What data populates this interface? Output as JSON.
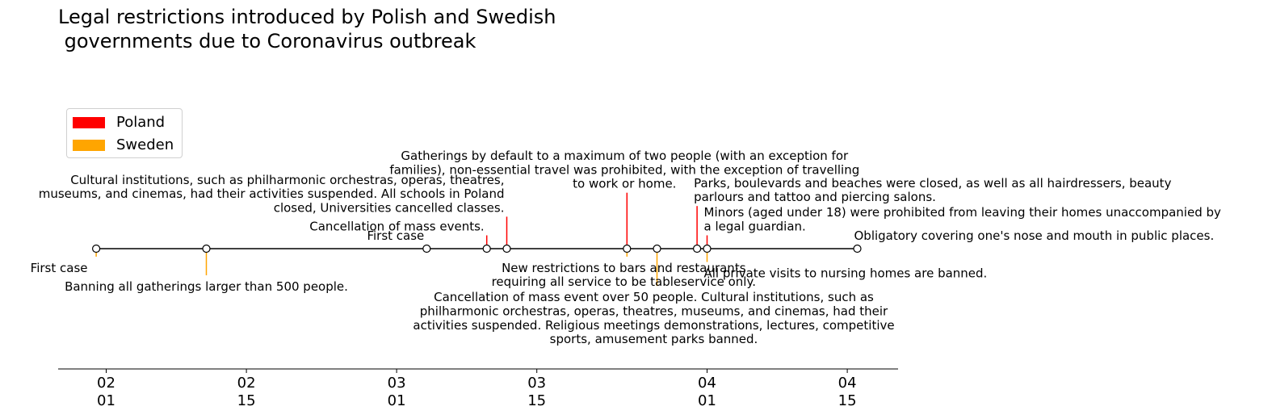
{
  "chart_data": {
    "type": "timeline",
    "title": "Legal restrictions introduced by Polish and Swedish\n governments due to Coronavirus outbreak",
    "legend": [
      {
        "name": "Poland",
        "color": "#ff0000"
      },
      {
        "name": "Sweden",
        "color": "#ffa500"
      }
    ],
    "legend_position": "upper-left",
    "x_ticks": [
      {
        "date": "2020-02-01",
        "label_line1": "02",
        "label_line2": "01"
      },
      {
        "date": "2020-02-15",
        "label_line1": "02",
        "label_line2": "15"
      },
      {
        "date": "2020-03-01",
        "label_line1": "03",
        "label_line2": "01"
      },
      {
        "date": "2020-03-15",
        "label_line1": "03",
        "label_line2": "15"
      },
      {
        "date": "2020-04-01",
        "label_line1": "04",
        "label_line2": "01"
      },
      {
        "date": "2020-04-15",
        "label_line1": "04",
        "label_line2": "15"
      }
    ],
    "xlim": [
      "2020-01-27",
      "2020-04-20"
    ],
    "events": [
      {
        "date": "2020-01-31",
        "country": "Sweden",
        "level": -0.3,
        "text": "First case"
      },
      {
        "date": "2020-02-11",
        "country": "Sweden",
        "level": -1.0,
        "text": "Banning all gatherings larger than 500 people."
      },
      {
        "date": "2020-03-04",
        "country": "Poland",
        "level": 0.15,
        "text": "First case"
      },
      {
        "date": "2020-03-10",
        "country": "Poland",
        "level": 0.5,
        "text": "Cancellation of mass events."
      },
      {
        "date": "2020-03-12",
        "country": "Poland",
        "level": 1.2,
        "text": "Cultural institutions, such as philharmonic orchestras, operas, theatres,\nmuseums, and cinemas, had their activities suspended. All schools in Poland\nclosed, Universities cancelled classes."
      },
      {
        "date": "2020-03-24",
        "country": "Sweden",
        "level": -0.3,
        "text": "New restrictions to bars and restaurants\nrequiring all service to be tableservice only."
      },
      {
        "date": "2020-03-24",
        "country": "Poland",
        "level": 2.1,
        "text": "Gatherings by default to a maximum of two people (with an exception for\nfamilies), non-essential travel was prohibited, with the exception of travelling\nto work or home."
      },
      {
        "date": "2020-03-27",
        "country": "Sweden",
        "level": -1.4,
        "text": "Cancellation of mass event over 50 people. Cultural institutions, such as\nphilharmonic orchestras, operas, theatres, museums, and cinemas, had their\nactivities suspended. Religious meetings demonstrations, lectures, competitive\nsports, amusement parks banned."
      },
      {
        "date": "2020-03-31",
        "country": "Poland",
        "level": 1.6,
        "text": "Parks, boulevards and beaches were closed, as well as all hairdressers, beauty\nparlours and tattoo and piercing salons."
      },
      {
        "date": "2020-04-01",
        "country": "Poland",
        "level": 0.5,
        "text": "Minors (aged under 18) were prohibited from leaving their homes unaccompanied by\na legal guardian."
      },
      {
        "date": "2020-04-01",
        "country": "Sweden",
        "level": -0.5,
        "text": "All private visits to nursing homes are banned."
      },
      {
        "date": "2020-04-16",
        "country": "Poland",
        "level": 0.15,
        "text": "Obligatory covering one's nose and mouth in public places."
      }
    ],
    "grid": false
  }
}
